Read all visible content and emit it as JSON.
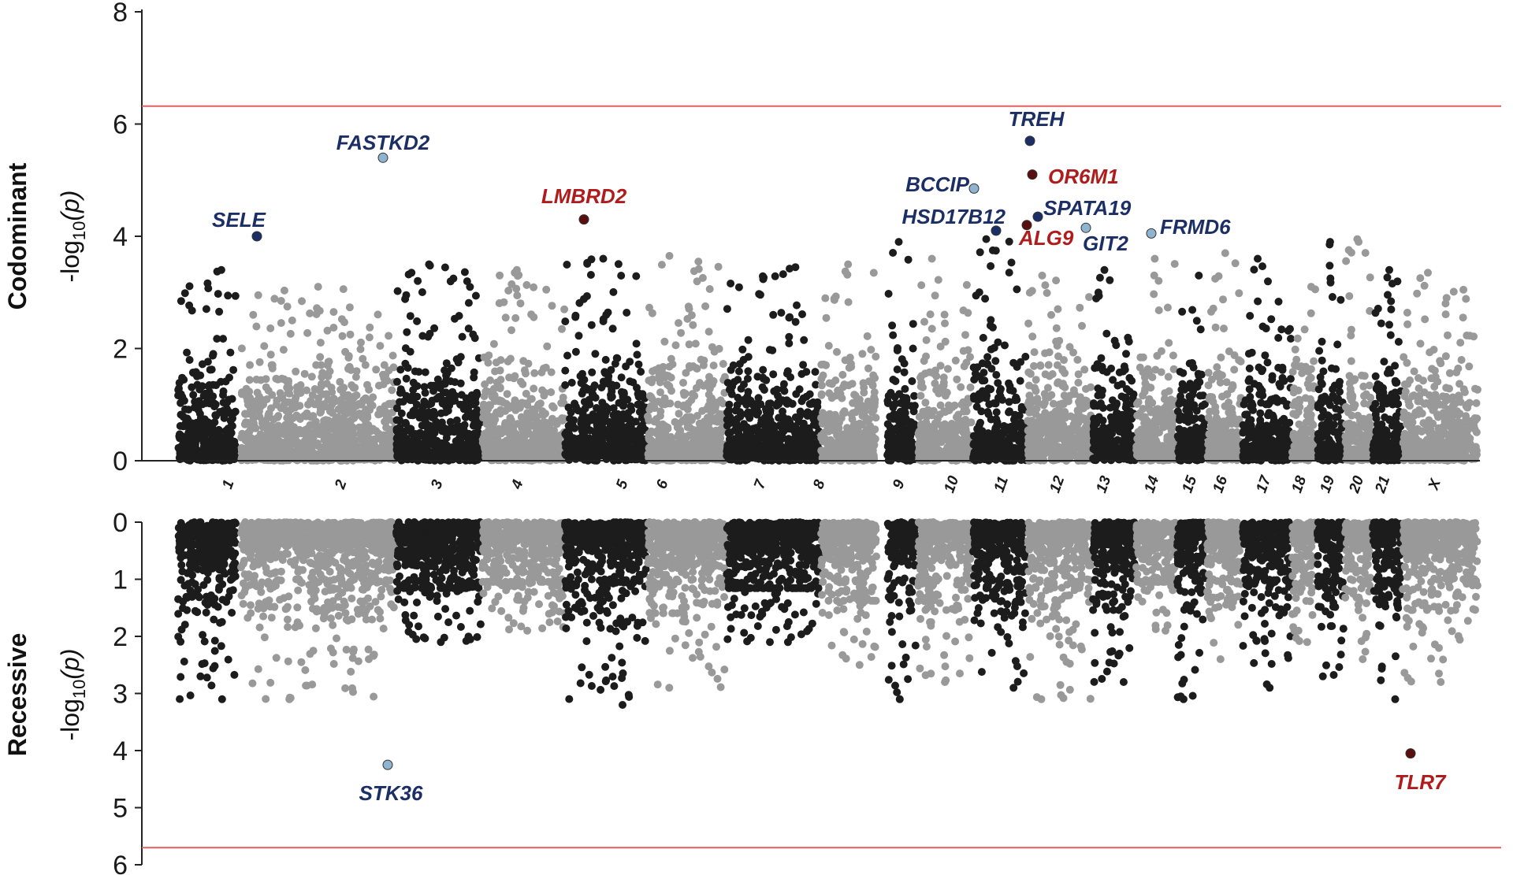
{
  "chart_data": [
    {
      "panel": "top",
      "type": "scatter",
      "ylabel_bold": "Codominant",
      "ylabel_pre": "-log",
      "ylabel_sub": "10",
      "ylabel_post": "(p)",
      "ylim": [
        0,
        8
      ],
      "yticks": [
        "0",
        "2",
        "4",
        "6",
        "8"
      ],
      "significance_threshold": 6.32,
      "colors": {
        "odd_chrom": "#1c1c1c",
        "even_chrom": "#999999",
        "threshold": "#e06060"
      },
      "chromosomes": [
        "1",
        "2",
        "3",
        "4",
        "5",
        "6",
        "7",
        "8",
        "9",
        "10",
        "11",
        "12",
        "13",
        "14",
        "15",
        "16",
        "17",
        "18",
        "19",
        "20",
        "21",
        "X"
      ],
      "background_max": [
        3.4,
        3.1,
        3.5,
        3.4,
        3.6,
        3.65,
        3.45,
        3.5,
        3.9,
        3.6,
        3.95,
        3.3,
        3.4,
        3.6,
        3.3,
        3.7,
        3.6,
        3.1,
        3.9,
        3.95,
        3.4,
        3.35
      ],
      "highlights": [
        {
          "gene": "SELE",
          "chrom": "1",
          "value": 4.0,
          "color": "navy"
        },
        {
          "gene": "FASTKD2",
          "chrom": "2",
          "value": 5.4,
          "color": "lightblue"
        },
        {
          "gene": "LMBRD2",
          "chrom": "5",
          "value": 4.3,
          "color": "darkred"
        },
        {
          "gene": "BCCIP",
          "chrom": "10",
          "value": 4.85,
          "color": "lightblue"
        },
        {
          "gene": "HSD17B12",
          "chrom": "11",
          "value": 4.1,
          "color": "navy"
        },
        {
          "gene": "TREH",
          "chrom": "11",
          "value": 5.7,
          "color": "navy"
        },
        {
          "gene": "OR6M1",
          "chrom": "11",
          "value": 5.1,
          "color": "darkred"
        },
        {
          "gene": "ALG9",
          "chrom": "11",
          "value": 4.2,
          "color": "darkred"
        },
        {
          "gene": "SPATA19",
          "chrom": "11",
          "value": 4.35,
          "color": "navy"
        },
        {
          "gene": "GIT2",
          "chrom": "12",
          "value": 4.15,
          "color": "lightblue"
        },
        {
          "gene": "FRMD6",
          "chrom": "14",
          "value": 4.05,
          "color": "lightblue"
        }
      ]
    },
    {
      "panel": "bottom",
      "type": "scatter",
      "ylabel_bold": "Recessive",
      "ylabel_pre": "-log",
      "ylabel_sub": "10",
      "ylabel_post": "(p)",
      "ylim": [
        0,
        6
      ],
      "yticks": [
        "0",
        "1",
        "2",
        "3",
        "4",
        "5",
        "6"
      ],
      "inverted": true,
      "significance_threshold": 5.7,
      "background_max": [
        3.1,
        3.1,
        2.1,
        1.9,
        3.2,
        2.9,
        2.1,
        2.5,
        3.1,
        2.8,
        2.9,
        3.1,
        2.8,
        1.9,
        3.1,
        2.4,
        2.9,
        2.1,
        2.7,
        2.4,
        3.1,
        2.8
      ],
      "highlights": [
        {
          "gene": "STK36",
          "chrom": "2",
          "value": 4.25,
          "color": "lightblue"
        },
        {
          "gene": "TLR7",
          "chrom": "X",
          "value": 4.05,
          "color": "darkred"
        }
      ]
    }
  ],
  "label_colors": {
    "navy": "#1b2f66",
    "darkred": "#b01c1c"
  },
  "dot_colors": {
    "navy": "#1b2f66",
    "darkred": "#5a0f0f",
    "lightblue": "#8fb4d0"
  }
}
